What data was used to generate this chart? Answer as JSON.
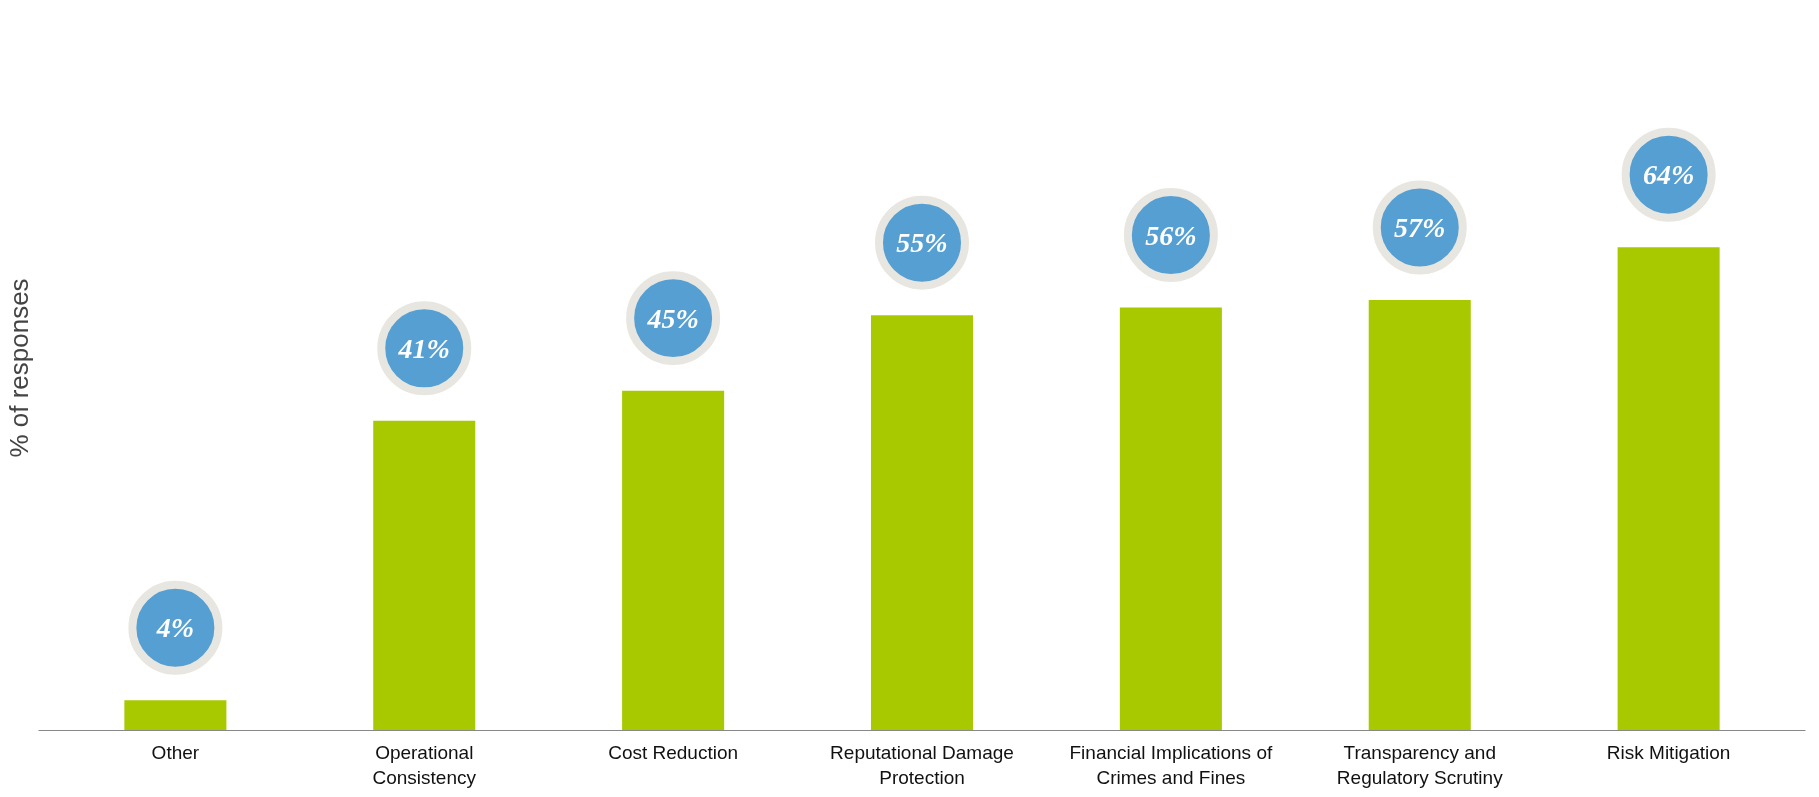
{
  "chart_data": {
    "type": "bar",
    "ylabel": "% of responses",
    "categories": [
      "Other",
      "Operational\nConsistency",
      "Cost Reduction",
      "Reputational Damage\nProtection",
      "Financial Implications of\nCrimes and Fines",
      "Transparency and\nRegulatory Scrutiny",
      "Risk Mitigation"
    ],
    "values": [
      4,
      41,
      45,
      55,
      56,
      57,
      64
    ],
    "value_labels": [
      "4%",
      "41%",
      "45%",
      "55%",
      "56%",
      "57%",
      "64%"
    ],
    "color": "#a8c800"
  }
}
